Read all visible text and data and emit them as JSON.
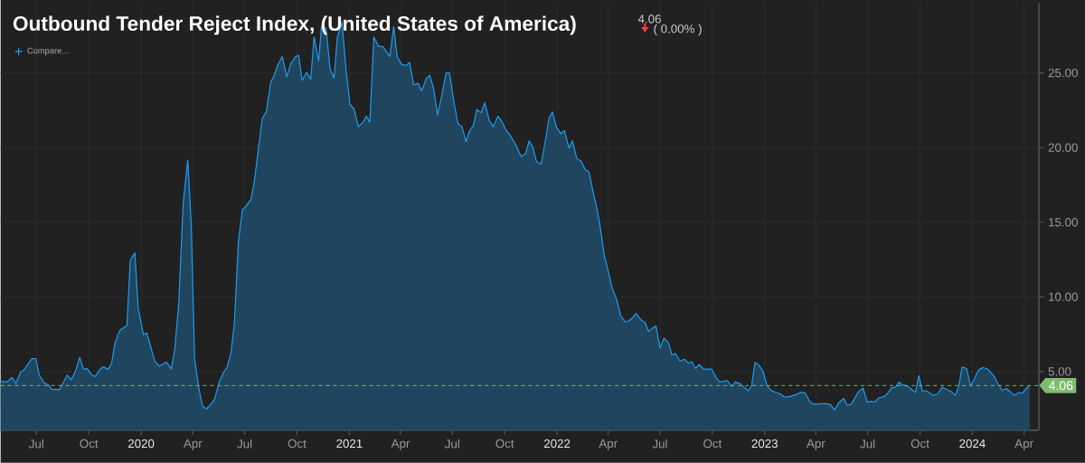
{
  "chart_data": {
    "type": "area",
    "title": "Outbound Tender Reject Index, (United States of America)",
    "annotations": [
      "4.06",
      "( 0.00% )",
      "Compare..."
    ],
    "x": [
      "2019-04-29",
      "2019-05-10",
      "2019-05-19",
      "2019-05-26",
      "2019-06-03",
      "2019-06-09",
      "2019-06-23",
      "2019-06-30",
      "2019-07-06",
      "2019-07-14",
      "2019-07-22",
      "2019-07-28",
      "2019-08-11",
      "2019-08-24",
      "2019-08-31",
      "2019-09-07",
      "2019-09-15",
      "2019-09-22",
      "2019-09-28",
      "2019-10-06",
      "2019-10-12",
      "2019-10-22",
      "2019-10-27",
      "2019-11-04",
      "2019-11-10",
      "2019-11-16",
      "2019-11-24",
      "2019-12-07",
      "2019-12-13",
      "2019-12-21",
      "2019-12-27",
      "2020-01-05",
      "2020-01-11",
      "2020-01-25",
      "2020-02-02",
      "2020-02-12",
      "2020-02-15",
      "2020-02-23",
      "2020-02-29",
      "2020-03-07",
      "2020-03-15",
      "2020-03-23",
      "2020-03-29",
      "2020-04-04",
      "2020-04-12",
      "2020-04-18",
      "2020-04-25",
      "2020-05-03",
      "2020-05-09",
      "2020-05-17",
      "2020-05-25",
      "2020-05-31",
      "2020-06-07",
      "2020-06-13",
      "2020-06-20",
      "2020-06-27",
      "2020-07-05",
      "2020-07-12",
      "2020-07-18",
      "2020-08-01",
      "2020-08-08",
      "2020-08-16",
      "2020-08-22",
      "2020-08-28",
      "2020-09-05",
      "2020-09-13",
      "2020-09-20",
      "2020-09-28",
      "2020-10-04",
      "2020-10-10",
      "2020-10-18",
      "2020-10-25",
      "2020-10-31",
      "2020-11-08",
      "2020-11-13",
      "2020-11-21",
      "2020-11-28",
      "2020-12-05",
      "2020-12-11",
      "2020-12-19",
      "2020-12-27",
      "2021-01-02",
      "2021-01-09",
      "2021-01-17",
      "2021-01-25",
      "2021-01-31",
      "2021-02-06",
      "2021-02-13",
      "2021-02-21",
      "2021-03-01",
      "2021-03-13",
      "2021-03-20",
      "2021-03-26",
      "2021-04-03",
      "2021-04-11",
      "2021-04-17",
      "2021-04-24",
      "2021-05-02",
      "2021-05-08",
      "2021-05-16",
      "2021-05-22",
      "2021-05-29",
      "2021-06-05",
      "2021-06-12",
      "2021-06-20",
      "2021-06-26",
      "2021-07-04",
      "2021-07-11",
      "2021-07-18",
      "2021-07-25",
      "2021-07-31",
      "2021-08-07",
      "2021-08-13",
      "2021-08-21",
      "2021-08-27",
      "2021-09-04",
      "2021-09-11",
      "2021-09-19",
      "2021-09-25",
      "2021-10-03",
      "2021-10-11",
      "2021-10-19",
      "2021-10-30",
      "2021-11-07",
      "2021-11-13",
      "2021-11-19",
      "2021-11-26",
      "2021-12-04",
      "2021-12-12",
      "2021-12-18",
      "2021-12-24",
      "2021-12-31",
      "2022-01-08",
      "2022-01-14",
      "2022-01-22",
      "2022-01-28",
      "2022-02-05",
      "2022-02-12",
      "2022-02-20",
      "2022-02-26",
      "2022-03-06",
      "2022-03-12",
      "2022-03-17",
      "2022-03-25",
      "2022-04-08",
      "2022-04-16",
      "2022-04-23",
      "2022-05-01",
      "2022-05-07",
      "2022-05-13",
      "2022-05-20",
      "2022-05-28",
      "2022-06-05",
      "2022-06-11",
      "2022-06-18",
      "2022-06-24",
      "2022-07-01",
      "2022-07-08",
      "2022-07-16",
      "2022-07-22",
      "2022-07-28",
      "2022-08-05",
      "2022-08-13",
      "2022-08-20",
      "2022-08-26",
      "2022-09-01",
      "2022-09-08",
      "2022-09-16",
      "2022-09-30",
      "2022-10-08",
      "2022-10-14",
      "2022-10-27",
      "2022-11-04",
      "2022-11-10",
      "2022-11-18",
      "2022-11-26",
      "2022-12-03",
      "2022-12-09",
      "2022-12-15",
      "2022-12-22",
      "2022-12-29",
      "2023-01-05",
      "2023-01-13",
      "2023-01-21",
      "2023-01-29",
      "2023-02-04",
      "2023-02-12",
      "2023-02-25",
      "2023-03-05",
      "2023-03-13",
      "2023-03-22",
      "2023-03-30",
      "2023-04-09",
      "2023-04-18",
      "2023-04-26",
      "2023-05-04",
      "2023-05-12",
      "2023-05-20",
      "2023-05-26",
      "2023-06-02",
      "2023-06-15",
      "2023-06-23",
      "2023-06-30",
      "2023-07-07",
      "2023-07-13",
      "2023-07-21",
      "2023-07-29",
      "2023-08-04",
      "2023-08-12",
      "2023-08-19",
      "2023-08-25",
      "2023-08-31",
      "2023-09-08",
      "2023-09-23",
      "2023-09-29",
      "2023-10-05",
      "2023-10-13",
      "2023-10-24",
      "2023-11-01",
      "2023-11-09",
      "2023-11-17",
      "2023-11-25",
      "2023-12-02",
      "2023-12-08",
      "2023-12-14",
      "2023-12-22",
      "2023-12-29",
      "2024-01-04",
      "2024-01-12",
      "2024-01-20",
      "2024-01-28",
      "2024-02-08",
      "2024-02-14",
      "2024-02-22",
      "2024-03-01",
      "2024-03-15",
      "2024-03-23",
      "2024-03-29",
      "2024-04-05",
      "2024-04-11"
    ],
    "series": [
      {
        "color": "#1e9bf0",
        "values": [
          4.35,
          4.3,
          4.6,
          4.2,
          4.96,
          5.1,
          5.86,
          5.86,
          4.76,
          4.26,
          4.1,
          3.8,
          3.8,
          4.76,
          4.46,
          4.96,
          5.95,
          5.15,
          5.2,
          4.8,
          4.66,
          5.2,
          5.3,
          5.15,
          5.54,
          6.87,
          7.74,
          8.08,
          12.47,
          12.95,
          9.19,
          7.48,
          7.58,
          5.7,
          5.36,
          5.6,
          5.6,
          5.16,
          6.47,
          9.49,
          16.34,
          19.16,
          14.93,
          5.86,
          3.75,
          2.69,
          2.5,
          2.83,
          3.15,
          4.26,
          4.96,
          5.26,
          6.27,
          8.28,
          13.72,
          15.83,
          16.14,
          16.54,
          17.75,
          21.98,
          22.38,
          24.4,
          24.84,
          25.5,
          26.1,
          24.74,
          25.6,
          26.07,
          26.17,
          24.5,
          25.04,
          24.56,
          27.4,
          25.8,
          28.1,
          28.0,
          25.3,
          24.64,
          27.4,
          28.4,
          24.9,
          22.9,
          22.6,
          21.4,
          21.7,
          22.1,
          21.7,
          27.4,
          26.8,
          26.75,
          26.1,
          28.1,
          26.1,
          25.56,
          25.5,
          25.7,
          24.2,
          24.3,
          23.8,
          24.6,
          24.84,
          23.99,
          22.2,
          23.4,
          25.0,
          25.0,
          23.0,
          21.6,
          21.4,
          20.4,
          21.1,
          21.5,
          22.54,
          22.34,
          23.0,
          21.8,
          21.4,
          22.1,
          21.8,
          21.2,
          20.8,
          20.3,
          19.4,
          19.6,
          20.45,
          20.07,
          19.06,
          18.9,
          20.57,
          21.98,
          22.38,
          21.37,
          20.93,
          21.13,
          19.97,
          20.47,
          19.24,
          19.12,
          18.5,
          18.4,
          16.94,
          15.94,
          14.93,
          12.81,
          10.6,
          9.79,
          8.73,
          8.32,
          8.38,
          8.58,
          8.88,
          8.48,
          8.28,
          7.68,
          7.92,
          8.04,
          6.57,
          7.24,
          6.92,
          6.1,
          6.22,
          5.7,
          5.82,
          5.56,
          5.66,
          5.22,
          5.46,
          5.16,
          5.16,
          4.56,
          4.3,
          4.4,
          4.0,
          4.3,
          4.2,
          3.95,
          3.71,
          4.05,
          5.62,
          5.42,
          5.02,
          4.05,
          3.71,
          3.6,
          3.49,
          3.3,
          3.3,
          3.45,
          3.6,
          3.57,
          2.95,
          2.8,
          2.85,
          2.85,
          2.8,
          2.44,
          2.95,
          3.19,
          2.75,
          2.8,
          3.65,
          3.89,
          2.95,
          3.0,
          2.95,
          3.25,
          3.3,
          3.49,
          3.91,
          3.95,
          4.29,
          4.1,
          4.05,
          3.6,
          4.72,
          3.71,
          3.69,
          3.41,
          3.49,
          3.95,
          3.79,
          3.65,
          3.41,
          4.0,
          5.3,
          5.2,
          4.05,
          4.46,
          5.12,
          5.26,
          5.16,
          4.7,
          4.25,
          3.75,
          3.85,
          3.41,
          3.6,
          3.55,
          3.89,
          4.06
        ]
      }
    ],
    "xlim": [
      "2019-04-29",
      "2024-04-27"
    ],
    "xticks": [
      {
        "value": "2019-07-01",
        "label": "Jul"
      },
      {
        "value": "2019-10-01",
        "label": "Oct"
      },
      {
        "value": "2020-01-01",
        "label": "2020"
      },
      {
        "value": "2020-04-01",
        "label": "Apr"
      },
      {
        "value": "2020-07-01",
        "label": "Jul"
      },
      {
        "value": "2020-10-01",
        "label": "Oct"
      },
      {
        "value": "2021-01-01",
        "label": "2021"
      },
      {
        "value": "2021-04-01",
        "label": "Apr"
      },
      {
        "value": "2021-07-01",
        "label": "Jul"
      },
      {
        "value": "2021-10-01",
        "label": "Oct"
      },
      {
        "value": "2022-01-01",
        "label": "2022"
      },
      {
        "value": "2022-04-01",
        "label": "Apr"
      },
      {
        "value": "2022-07-01",
        "label": "Jul"
      },
      {
        "value": "2022-10-01",
        "label": "Oct"
      },
      {
        "value": "2023-01-01",
        "label": "2023"
      },
      {
        "value": "2023-04-01",
        "label": "Apr"
      },
      {
        "value": "2023-07-01",
        "label": "Jul"
      },
      {
        "value": "2023-10-01",
        "label": "Oct"
      },
      {
        "value": "2024-01-01",
        "label": "2024"
      },
      {
        "value": "2024-04-01",
        "label": "Apr"
      }
    ],
    "ylim": [
      1.07,
      29.7
    ],
    "yticks": [
      {
        "value": 5,
        "label": "5.00"
      },
      {
        "value": 10,
        "label": "10.00"
      },
      {
        "value": 15,
        "label": "15.00"
      },
      {
        "value": 20,
        "label": "20.00"
      },
      {
        "value": 25,
        "label": "25.00"
      }
    ],
    "grid": true,
    "ref_lines": [
      {
        "axis": "y",
        "value": 4.06,
        "label": "4.06",
        "color": "#7dbd6e",
        "line_style": "dashed"
      }
    ]
  }
}
